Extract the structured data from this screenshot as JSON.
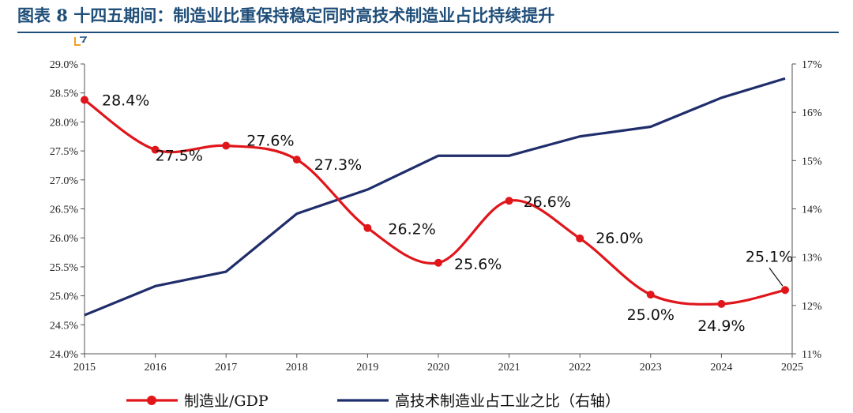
{
  "header": {
    "title": "图表 8   十四五期间：制造业比重保持稳定同时高技术制造业占比持续提升"
  },
  "chart_data": {
    "type": "line",
    "x_ticks": [
      "2015",
      "2016",
      "2017",
      "2018",
      "2019",
      "2020",
      "2021",
      "2022",
      "2023",
      "2024",
      "2025"
    ],
    "left_axis": {
      "range": [
        24.0,
        29.0
      ],
      "ticks": [
        "24.0%",
        "24.5%",
        "25.0%",
        "25.5%",
        "26.0%",
        "26.5%",
        "27.0%",
        "27.5%",
        "28.0%",
        "28.5%",
        "29.0%"
      ]
    },
    "right_axis": {
      "range": [
        11,
        17
      ],
      "ticks": [
        "11%",
        "12%",
        "13%",
        "14%",
        "15%",
        "16%",
        "17%"
      ]
    },
    "colors": {
      "manufacturing": "#e0161b",
      "hightech": "#1f2d6b"
    },
    "series": [
      {
        "name": "制造业/GDP",
        "axis": "left",
        "x": [
          2015,
          2016,
          2017,
          2018,
          2019,
          2020,
          2021,
          2022,
          2023,
          2024,
          2024.9
        ],
        "values": [
          28.38,
          27.52,
          27.59,
          27.35,
          26.17,
          25.57,
          26.64,
          25.99,
          25.02,
          24.86,
          25.1
        ],
        "labels": [
          "28.4%",
          "27.5%",
          "27.6%",
          "27.3%",
          "26.2%",
          "25.6%",
          "26.6%",
          "26.0%",
          "25.0%",
          "24.9%",
          "25.1%"
        ]
      },
      {
        "name": "高技术制造业占工业之比（右轴）",
        "axis": "right",
        "x": [
          2015,
          2016,
          2017,
          2018,
          2019,
          2020,
          2021,
          2022,
          2023,
          2024,
          2024.9
        ],
        "values": [
          11.8,
          12.4,
          12.7,
          13.9,
          14.4,
          15.1,
          15.1,
          15.5,
          15.7,
          16.3,
          16.7
        ]
      }
    ],
    "legend": "bottom"
  }
}
